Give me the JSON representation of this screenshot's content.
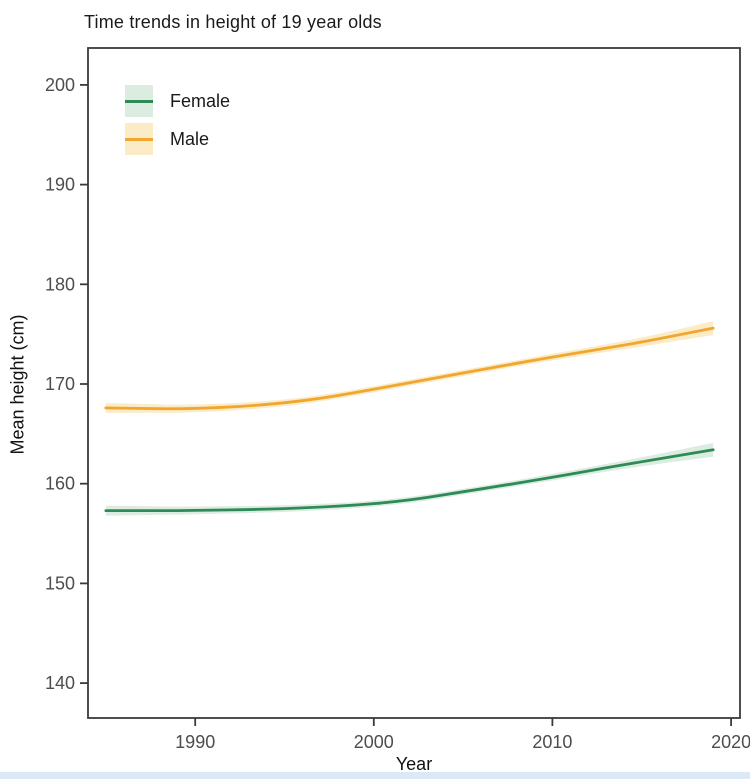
{
  "chart_data": {
    "type": "line",
    "title": "Time trends in height of 19 year olds",
    "xlabel": "Year",
    "ylabel": "Mean height (cm)",
    "xlim": [
      1984,
      2020.5
    ],
    "ylim": [
      136.5,
      203.7
    ],
    "x_ticks": [
      1990,
      2000,
      2010,
      2020
    ],
    "y_ticks": [
      140,
      150,
      160,
      170,
      180,
      190,
      200
    ],
    "grid": false,
    "legend_position": "top-left-inside",
    "x": [
      1985,
      1987,
      1989,
      1991,
      1993,
      1995,
      1997,
      1999,
      2001,
      2003,
      2005,
      2007,
      2009,
      2011,
      2013,
      2015,
      2017,
      2019
    ],
    "series": [
      {
        "name": "Female",
        "color": "#2e8b57",
        "band_color": "#dcece1",
        "values": [
          157.3,
          157.3,
          157.3,
          157.35,
          157.4,
          157.5,
          157.65,
          157.85,
          158.15,
          158.6,
          159.2,
          159.75,
          160.35,
          160.95,
          161.6,
          162.2,
          162.8,
          163.4
        ],
        "ci": [
          0.5,
          0.45,
          0.4,
          0.38,
          0.35,
          0.33,
          0.32,
          0.3,
          0.3,
          0.3,
          0.3,
          0.3,
          0.32,
          0.35,
          0.38,
          0.45,
          0.55,
          0.7
        ]
      },
      {
        "name": "Male",
        "color": "#f1a62f",
        "band_color": "#fbebc7",
        "values": [
          167.6,
          167.55,
          167.5,
          167.6,
          167.8,
          168.1,
          168.55,
          169.15,
          169.8,
          170.45,
          171.1,
          171.75,
          172.4,
          173.0,
          173.6,
          174.2,
          174.9,
          175.6
        ],
        "ci": [
          0.5,
          0.45,
          0.4,
          0.38,
          0.35,
          0.33,
          0.32,
          0.3,
          0.3,
          0.3,
          0.3,
          0.3,
          0.32,
          0.35,
          0.38,
          0.45,
          0.55,
          0.7
        ]
      }
    ]
  },
  "colors": {
    "panel_border": "#3a3a3a",
    "tick_mark": "#3a3a3a",
    "tick_label": "#4d4d4d",
    "text": "#111111",
    "background": "#ffffff",
    "bottom_strip": "#dbe8f6"
  }
}
